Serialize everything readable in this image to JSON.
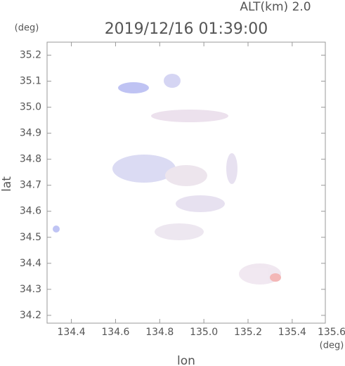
{
  "chart_data": {
    "type": "map",
    "title": "2019/12/16 01:39:00",
    "subtitle": "ALT(km) 2.0",
    "y_unit": "(deg)",
    "x_unit": "(deg)",
    "xlabel": "lon",
    "ylabel": "lat",
    "xlim": [
      134.29,
      135.55
    ],
    "ylim": [
      34.17,
      35.25
    ],
    "xticks": [
      134.4,
      134.6,
      134.8,
      {
        "value": 135,
        "label": "135.0"
      },
      135.2,
      135.4,
      135.6
    ],
    "yticks": [
      34.2,
      34.3,
      34.4,
      34.5,
      34.6,
      34.7,
      34.8,
      34.9,
      {
        "value": 35,
        "label": "35.0"
      },
      35.1,
      35.2
    ]
  }
}
